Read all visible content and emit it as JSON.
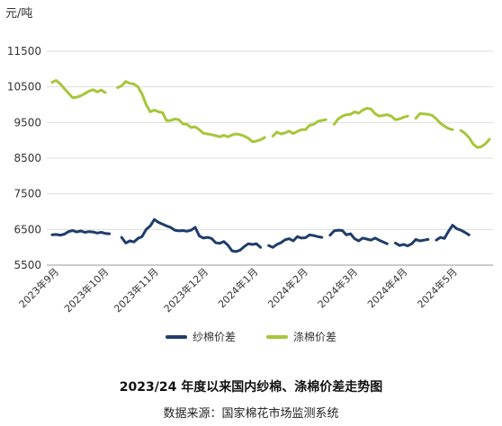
{
  "chart_data": {
    "type": "line",
    "ylabel": "元/吨",
    "yticks": [
      5500,
      6500,
      7500,
      8500,
      9500,
      10500,
      11500
    ],
    "ylim": [
      5500,
      11500
    ],
    "xticks": [
      "2023年9月",
      "2023年10月",
      "2023年11月",
      "2023年12月",
      "2024年1月",
      "2024年2月",
      "2024年3月",
      "2024年4月",
      "2024年5月"
    ],
    "grid": "horizontal",
    "legend_position": "bottom",
    "title": "2023/24 年度以来国内纱棉、涤棉价差走势图",
    "source": "数据来源：国家棉花市场监测系统",
    "colors": {
      "yarn": "#1f3d6b",
      "poly": "#a6c63a"
    },
    "series": [
      {
        "name": "纱棉价差",
        "color": "#1f3d6b",
        "segments": [
          [
            [
              0,
              6350
            ],
            [
              1,
              6360
            ],
            [
              2,
              6340
            ],
            [
              3,
              6370
            ],
            [
              4,
              6440
            ],
            [
              5,
              6470
            ],
            [
              6,
              6430
            ],
            [
              7,
              6460
            ],
            [
              8,
              6420
            ],
            [
              9,
              6440
            ],
            [
              10,
              6430
            ],
            [
              11,
              6400
            ],
            [
              12,
              6420
            ],
            [
              13,
              6390
            ],
            [
              14,
              6380
            ]
          ],
          [
            [
              17,
              6280
            ],
            [
              18,
              6120
            ],
            [
              19,
              6180
            ],
            [
              20,
              6150
            ],
            [
              21,
              6250
            ],
            [
              22,
              6300
            ],
            [
              23,
              6500
            ],
            [
              24,
              6600
            ],
            [
              25,
              6780
            ],
            [
              26,
              6700
            ],
            [
              27,
              6650
            ],
            [
              28,
              6600
            ],
            [
              29,
              6560
            ],
            [
              30,
              6480
            ],
            [
              31,
              6460
            ],
            [
              32,
              6470
            ],
            [
              33,
              6450
            ],
            [
              34,
              6480
            ],
            [
              35,
              6560
            ],
            [
              36,
              6320
            ],
            [
              37,
              6260
            ],
            [
              38,
              6280
            ],
            [
              39,
              6250
            ],
            [
              40,
              6130
            ],
            [
              41,
              6110
            ],
            [
              42,
              6160
            ],
            [
              43,
              6060
            ],
            [
              44,
              5900
            ],
            [
              45,
              5880
            ],
            [
              46,
              5920
            ],
            [
              47,
              6020
            ],
            [
              48,
              6100
            ],
            [
              49,
              6080
            ],
            [
              50,
              6100
            ],
            [
              51,
              6000
            ]
          ],
          [
            [
              53,
              6050
            ],
            [
              54,
              6000
            ],
            [
              55,
              6080
            ],
            [
              56,
              6130
            ],
            [
              57,
              6210
            ],
            [
              58,
              6240
            ],
            [
              59,
              6180
            ],
            [
              60,
              6300
            ],
            [
              61,
              6260
            ],
            [
              62,
              6270
            ],
            [
              63,
              6350
            ],
            [
              64,
              6330
            ],
            [
              65,
              6300
            ],
            [
              66,
              6280
            ]
          ],
          [
            [
              68,
              6340
            ],
            [
              69,
              6460
            ],
            [
              70,
              6480
            ],
            [
              71,
              6470
            ],
            [
              72,
              6350
            ],
            [
              73,
              6380
            ],
            [
              74,
              6240
            ],
            [
              75,
              6180
            ],
            [
              76,
              6260
            ],
            [
              77,
              6230
            ],
            [
              78,
              6200
            ],
            [
              79,
              6260
            ],
            [
              80,
              6200
            ],
            [
              81,
              6150
            ],
            [
              82,
              6100
            ]
          ],
          [
            [
              84,
              6120
            ],
            [
              85,
              6050
            ],
            [
              86,
              6080
            ],
            [
              87,
              6040
            ],
            [
              88,
              6100
            ],
            [
              89,
              6220
            ],
            [
              90,
              6180
            ],
            [
              91,
              6200
            ],
            [
              92,
              6220
            ]
          ],
          [
            [
              94,
              6200
            ],
            [
              95,
              6280
            ],
            [
              96,
              6250
            ],
            [
              97,
              6450
            ],
            [
              98,
              6620
            ],
            [
              99,
              6520
            ],
            [
              100,
              6480
            ],
            [
              101,
              6420
            ],
            [
              102,
              6350
            ]
          ]
        ]
      },
      {
        "name": "涤棉价差",
        "color": "#a6c63a",
        "segments": [
          [
            [
              0,
              10630
            ],
            [
              1,
              10680
            ],
            [
              2,
              10580
            ],
            [
              3,
              10450
            ],
            [
              4,
              10320
            ],
            [
              5,
              10200
            ],
            [
              6,
              10210
            ],
            [
              7,
              10250
            ],
            [
              8,
              10310
            ],
            [
              9,
              10380
            ],
            [
              10,
              10420
            ],
            [
              11,
              10360
            ],
            [
              12,
              10410
            ],
            [
              13,
              10340
            ]
          ],
          [
            [
              16,
              10480
            ],
            [
              17,
              10530
            ],
            [
              18,
              10650
            ],
            [
              19,
              10600
            ],
            [
              20,
              10580
            ],
            [
              21,
              10500
            ],
            [
              22,
              10300
            ],
            [
              23,
              10000
            ],
            [
              24,
              9800
            ],
            [
              25,
              9850
            ],
            [
              26,
              9800
            ],
            [
              27,
              9780
            ],
            [
              28,
              9550
            ],
            [
              29,
              9560
            ],
            [
              30,
              9600
            ],
            [
              31,
              9580
            ],
            [
              32,
              9460
            ],
            [
              33,
              9450
            ],
            [
              34,
              9360
            ],
            [
              35,
              9380
            ],
            [
              36,
              9300
            ],
            [
              37,
              9200
            ],
            [
              38,
              9180
            ],
            [
              39,
              9160
            ],
            [
              40,
              9130
            ],
            [
              41,
              9100
            ],
            [
              42,
              9140
            ],
            [
              43,
              9100
            ],
            [
              44,
              9150
            ],
            [
              45,
              9180
            ],
            [
              46,
              9160
            ],
            [
              47,
              9120
            ],
            [
              48,
              9060
            ],
            [
              49,
              8960
            ],
            [
              50,
              8980
            ],
            [
              51,
              9020
            ],
            [
              52,
              9080
            ]
          ],
          [
            [
              54,
              9120
            ],
            [
              55,
              9230
            ],
            [
              56,
              9180
            ],
            [
              57,
              9210
            ],
            [
              58,
              9260
            ],
            [
              59,
              9190
            ],
            [
              60,
              9250
            ],
            [
              61,
              9300
            ],
            [
              62,
              9300
            ],
            [
              63,
              9420
            ],
            [
              64,
              9450
            ],
            [
              65,
              9530
            ],
            [
              66,
              9560
            ],
            [
              67,
              9580
            ]
          ],
          [
            [
              69,
              9450
            ],
            [
              70,
              9600
            ],
            [
              71,
              9680
            ],
            [
              72,
              9720
            ],
            [
              73,
              9730
            ],
            [
              74,
              9800
            ],
            [
              75,
              9760
            ],
            [
              76,
              9850
            ],
            [
              77,
              9900
            ],
            [
              78,
              9880
            ],
            [
              79,
              9750
            ],
            [
              80,
              9680
            ],
            [
              81,
              9700
            ],
            [
              82,
              9720
            ],
            [
              83,
              9680
            ],
            [
              84,
              9580
            ],
            [
              85,
              9600
            ],
            [
              86,
              9650
            ],
            [
              87,
              9680
            ]
          ],
          [
            [
              89,
              9620
            ],
            [
              90,
              9750
            ],
            [
              91,
              9740
            ],
            [
              92,
              9730
            ],
            [
              93,
              9700
            ],
            [
              94,
              9600
            ],
            [
              95,
              9480
            ],
            [
              96,
              9400
            ],
            [
              97,
              9330
            ],
            [
              98,
              9300
            ]
          ],
          [
            [
              100,
              9280
            ],
            [
              101,
              9200
            ],
            [
              102,
              9080
            ],
            [
              103,
              8900
            ],
            [
              104,
              8800
            ],
            [
              105,
              8820
            ],
            [
              106,
              8900
            ],
            [
              107,
              9030
            ]
          ]
        ]
      }
    ]
  }
}
